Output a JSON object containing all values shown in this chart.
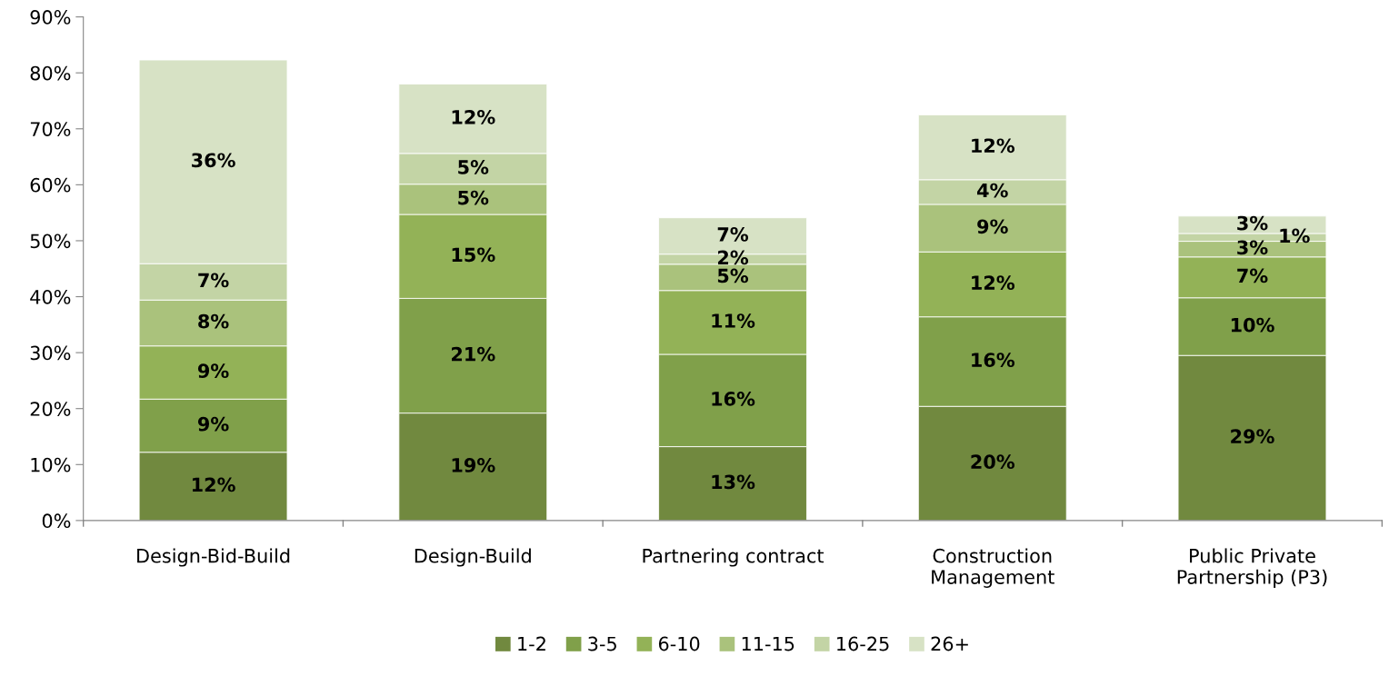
{
  "chart_data": {
    "type": "bar",
    "stacked": true,
    "data_labels": false,
    "legend": "bottom",
    "grid": false,
    "categories": [
      "Design-Bid-Build",
      "Design-Build",
      "Partnering contract",
      "Construction\nManagement",
      "Public Private\nPartnership (P3)"
    ],
    "ylim": [
      0,
      90
    ],
    "yticks": [
      {
        "value": 0,
        "label": "0%"
      },
      {
        "value": 10,
        "label": "10%"
      },
      {
        "value": 20,
        "label": "20%"
      },
      {
        "value": 30,
        "label": "30%"
      },
      {
        "value": 40,
        "label": "40%"
      },
      {
        "value": 50,
        "label": "50%"
      },
      {
        "value": 60,
        "label": "60%"
      },
      {
        "value": 70,
        "label": "70%"
      },
      {
        "value": 80,
        "label": "80%"
      },
      {
        "value": 90,
        "label": "90%"
      }
    ],
    "series": [
      {
        "name": "1-2",
        "color": "#71893f",
        "values": [
          12.2,
          19.2,
          13.2,
          20.4,
          29.5
        ],
        "value_labels": [
          "12%",
          "19%",
          "13%",
          "20%",
          "29%"
        ]
      },
      {
        "name": "3-5",
        "color": "#80a04a",
        "values": [
          9.5,
          20.5,
          16.5,
          16.0,
          10.3
        ],
        "value_labels": [
          "9%",
          "21%",
          "16%",
          "16%",
          "10%"
        ]
      },
      {
        "name": "6-10",
        "color": "#93b257",
        "values": [
          9.5,
          15.0,
          11.4,
          11.6,
          7.3
        ],
        "value_labels": [
          "9%",
          "15%",
          "11%",
          "12%",
          "7%"
        ]
      },
      {
        "name": "11-15",
        "color": "#aac27c",
        "values": [
          8.2,
          5.4,
          4.7,
          8.5,
          2.8
        ],
        "value_labels": [
          "8%",
          "5%",
          "5%",
          "9%",
          "3%"
        ]
      },
      {
        "name": "16-25",
        "color": "#c3d4a5",
        "values": [
          6.5,
          5.5,
          1.8,
          4.4,
          1.4
        ],
        "value_labels": [
          "7%",
          "5%",
          "2%",
          "4%",
          "1%"
        ]
      },
      {
        "name": "26+",
        "color": "#d7e2c5",
        "values": [
          36.4,
          12.4,
          6.5,
          11.6,
          3.1
        ],
        "value_labels": [
          "36%",
          "12%",
          "7%",
          "12%",
          "3%"
        ]
      }
    ]
  }
}
